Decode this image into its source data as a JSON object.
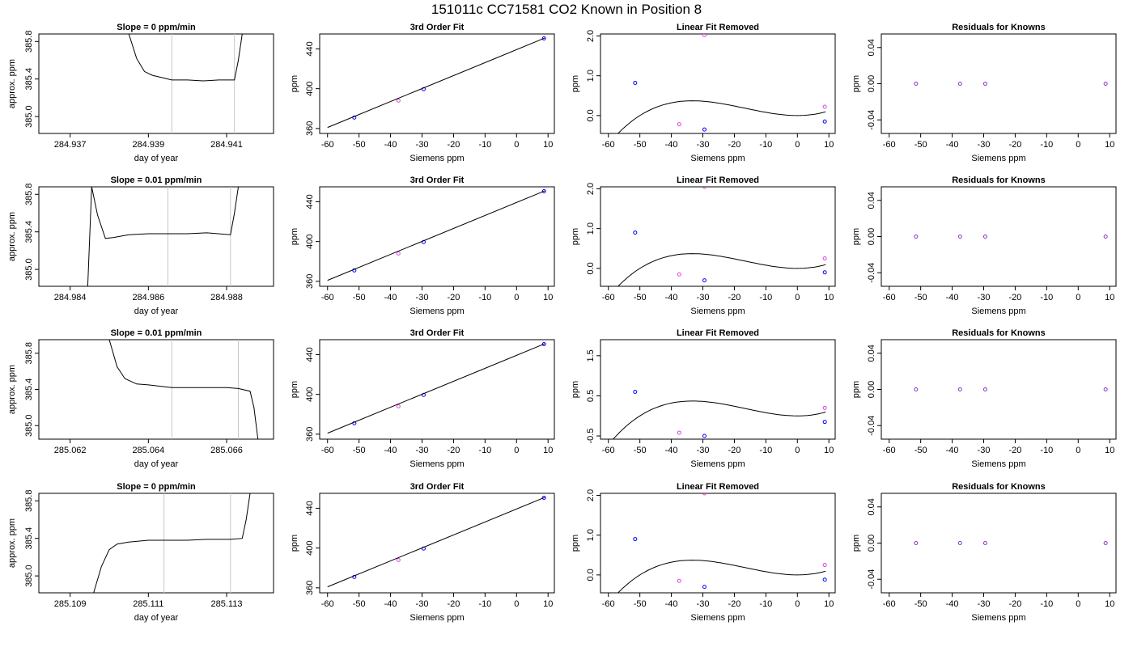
{
  "figure": {
    "title": "151011c      CC71581    CO2 Known in Position  8"
  },
  "chart_data": [
    {
      "type": "line",
      "title": "Slope =  0  ppm/min",
      "xlabel": "day of year",
      "ylabel": "approx. ppm",
      "xlim": [
        284.9362,
        284.9422
      ],
      "ylim": [
        384.82,
        385.88
      ],
      "xticks": [
        284.937,
        284.939,
        284.941
      ],
      "xtick_labels": [
        "284.937",
        "284.939",
        "284.941"
      ],
      "yticks": [
        385.0,
        385.4,
        385.8
      ],
      "ytick_labels": [
        "385.0",
        "385.4",
        "385.8"
      ],
      "vlines": [
        284.9396,
        284.9412
      ],
      "line_color": "#000000",
      "vline_color": "#c8c8c8",
      "series": [
        {
          "x": [
            284.9385,
            284.9387,
            284.9389,
            284.9391,
            284.9393,
            284.9396,
            284.94,
            284.9404,
            284.9408,
            284.9412,
            284.9413,
            284.9414
          ],
          "y": [
            385.88,
            385.62,
            385.48,
            385.44,
            385.42,
            385.39,
            385.39,
            385.38,
            385.39,
            385.39,
            385.6,
            385.88
          ]
        }
      ]
    },
    {
      "type": "scatter",
      "title": "3rd Order Fit",
      "xlabel": "Siemens ppm",
      "ylabel": "ppm",
      "xlim": [
        -62.5,
        12
      ],
      "ylim": [
        355,
        455
      ],
      "xticks": [
        -60,
        -50,
        -40,
        -30,
        -20,
        -10,
        0,
        10
      ],
      "xtick_labels": [
        "-60",
        "-50",
        "-40",
        "-30",
        "-20",
        "-10",
        "0",
        "10"
      ],
      "yticks": [
        360,
        400,
        440
      ],
      "ytick_labels": [
        "360",
        "400",
        "440"
      ],
      "series": [
        {
          "name": "knowns",
          "color": "#0000ff",
          "x": [
            -51.5,
            -29.5,
            8.7
          ],
          "y": [
            371.0,
            399.5,
            450.5
          ]
        },
        {
          "name": "unknown",
          "color": "#dd44dd",
          "x": [
            -37.5
          ],
          "y": [
            388.0
          ]
        },
        {
          "name": "fit",
          "color": "#000000",
          "x": [
            -60,
            9
          ],
          "y": [
            361.0,
            451.0
          ]
        }
      ]
    },
    {
      "type": "scatter",
      "title": "Linear Fit Removed",
      "xlabel": "Siemens ppm",
      "ylabel": "ppm",
      "xlim": [
        -62.5,
        12
      ],
      "ylim": [
        -0.45,
        2.05
      ],
      "xticks": [
        -60,
        -50,
        -40,
        -30,
        -20,
        -10,
        0,
        10
      ],
      "xtick_labels": [
        "-60",
        "-50",
        "-40",
        "-30",
        "-20",
        "-10",
        "0",
        "10"
      ],
      "yticks": [
        0.0,
        1.0,
        2.0
      ],
      "ytick_labels": [
        "0.0",
        "1.0",
        "2.0"
      ],
      "curve": {
        "x0": -60,
        "x1": 9,
        "a": 2e-05,
        "b": 0.001,
        "c": 0
      },
      "series": [
        {
          "name": "knowns",
          "color": "#0000ff",
          "x": [
            -51.5,
            -29.5,
            8.7
          ],
          "y": [
            0.82,
            -0.35,
            -0.15
          ]
        },
        {
          "name": "unknown",
          "color": "#dd44dd",
          "x": [
            -37.5,
            -29.5,
            8.7
          ],
          "y": [
            -0.22,
            2.02,
            0.22
          ]
        }
      ]
    },
    {
      "type": "scatter",
      "title": "Residuals for Knowns",
      "xlabel": "Siemens ppm",
      "ylabel": "ppm",
      "xlim": [
        -62.5,
        12
      ],
      "ylim": [
        -0.055,
        0.055
      ],
      "xticks": [
        -60,
        -50,
        -40,
        -30,
        -20,
        -10,
        0,
        10
      ],
      "xtick_labels": [
        "-60",
        "-50",
        "-40",
        "-30",
        "-20",
        "-10",
        "0",
        "10"
      ],
      "yticks": [
        -0.04,
        0.0,
        0.04
      ],
      "ytick_labels": [
        "-0.04",
        "0.00",
        "0.04"
      ],
      "series": [
        {
          "name": "residuals",
          "color": "#8833cc",
          "x": [
            -51.5,
            -37.5,
            -29.5,
            8.7
          ],
          "y": [
            0,
            0,
            0,
            0
          ]
        }
      ]
    },
    {
      "type": "line",
      "title": "Slope =  0.01  ppm/min",
      "xlabel": "day of year",
      "ylabel": "approx. ppm",
      "xlim": [
        284.9832,
        284.9892
      ],
      "ylim": [
        384.82,
        385.88
      ],
      "xticks": [
        284.984,
        284.986,
        284.988
      ],
      "xtick_labels": [
        "284.984",
        "284.986",
        "284.988"
      ],
      "yticks": [
        385.0,
        385.4,
        385.8
      ],
      "ytick_labels": [
        "385.0",
        "385.4",
        "385.8"
      ],
      "vlines": [
        284.9865,
        284.9881
      ],
      "line_color": "#000000",
      "vline_color": "#c8c8c8",
      "series": [
        {
          "x": [
            284.98445,
            284.98455,
            284.9847,
            284.9849,
            284.9851,
            284.9855,
            284.986,
            284.9865,
            284.987,
            284.9875,
            284.9881,
            284.9882,
            284.9883
          ],
          "y": [
            384.82,
            385.88,
            385.58,
            385.33,
            385.34,
            385.37,
            385.38,
            385.38,
            385.38,
            385.39,
            385.37,
            385.6,
            385.88
          ]
        }
      ]
    },
    {
      "type": "scatter",
      "title": "3rd Order Fit",
      "xlabel": "Siemens ppm",
      "ylabel": "ppm",
      "xlim": [
        -62.5,
        12
      ],
      "ylim": [
        355,
        455
      ],
      "xticks": [
        -60,
        -50,
        -40,
        -30,
        -20,
        -10,
        0,
        10
      ],
      "xtick_labels": [
        "-60",
        "-50",
        "-40",
        "-30",
        "-20",
        "-10",
        "0",
        "10"
      ],
      "yticks": [
        360,
        400,
        440
      ],
      "ytick_labels": [
        "360",
        "400",
        "440"
      ],
      "series": [
        {
          "name": "knowns",
          "color": "#0000ff",
          "x": [
            -51.5,
            -29.5,
            8.7
          ],
          "y": [
            371.0,
            399.5,
            450.5
          ]
        },
        {
          "name": "unknown",
          "color": "#dd44dd",
          "x": [
            -37.5
          ],
          "y": [
            388.0
          ]
        },
        {
          "name": "fit",
          "color": "#000000",
          "x": [
            -60,
            9
          ],
          "y": [
            361.0,
            451.0
          ]
        }
      ]
    },
    {
      "type": "scatter",
      "title": "Linear Fit Removed",
      "xlabel": "Siemens ppm",
      "ylabel": "ppm",
      "xlim": [
        -62.5,
        12
      ],
      "ylim": [
        -0.45,
        2.05
      ],
      "xticks": [
        -60,
        -50,
        -40,
        -30,
        -20,
        -10,
        0,
        10
      ],
      "xtick_labels": [
        "-60",
        "-50",
        "-40",
        "-30",
        "-20",
        "-10",
        "0",
        "10"
      ],
      "yticks": [
        0.0,
        1.0,
        2.0
      ],
      "ytick_labels": [
        "0.0",
        "1.0",
        "2.0"
      ],
      "curve": {
        "x0": -60,
        "x1": 9,
        "a": 2e-05,
        "b": 0.001,
        "c": 0
      },
      "series": [
        {
          "name": "knowns",
          "color": "#0000ff",
          "x": [
            -51.5,
            -29.5,
            8.7
          ],
          "y": [
            0.9,
            -0.3,
            -0.1
          ]
        },
        {
          "name": "unknown",
          "color": "#dd44dd",
          "x": [
            -37.5,
            -29.5,
            8.7
          ],
          "y": [
            -0.15,
            2.05,
            0.25
          ]
        }
      ]
    },
    {
      "type": "scatter",
      "title": "Residuals for Knowns",
      "xlabel": "Siemens ppm",
      "ylabel": "ppm",
      "xlim": [
        -62.5,
        12
      ],
      "ylim": [
        -0.055,
        0.055
      ],
      "xticks": [
        -60,
        -50,
        -40,
        -30,
        -20,
        -10,
        0,
        10
      ],
      "xtick_labels": [
        "-60",
        "-50",
        "-40",
        "-30",
        "-20",
        "-10",
        "0",
        "10"
      ],
      "yticks": [
        -0.04,
        0.0,
        0.04
      ],
      "ytick_labels": [
        "-0.04",
        "0.00",
        "0.04"
      ],
      "series": [
        {
          "name": "residuals",
          "color": "#8833cc",
          "x": [
            -51.5,
            -37.5,
            -29.5,
            8.7
          ],
          "y": [
            0,
            0,
            0,
            0
          ]
        }
      ]
    },
    {
      "type": "line",
      "title": "Slope =  0.01  ppm/min",
      "xlabel": "day of year",
      "ylabel": "approx. ppm",
      "xlim": [
        285.0612,
        285.0672
      ],
      "ylim": [
        384.85,
        385.95
      ],
      "xticks": [
        285.062,
        285.064,
        285.066
      ],
      "xtick_labels": [
        "285.062",
        "285.064",
        "285.066"
      ],
      "yticks": [
        385.0,
        385.4,
        385.8
      ],
      "ytick_labels": [
        "385.0",
        "385.4",
        "385.8"
      ],
      "vlines": [
        285.0646,
        285.0663
      ],
      "line_color": "#000000",
      "vline_color": "#c8c8c8",
      "series": [
        {
          "x": [
            285.063,
            285.0632,
            285.0634,
            285.0637,
            285.064,
            285.0646,
            285.065,
            285.0655,
            285.066,
            285.0663,
            285.0666,
            285.0667,
            285.0668
          ],
          "y": [
            385.95,
            385.65,
            385.52,
            385.46,
            385.45,
            385.42,
            385.42,
            385.42,
            385.42,
            385.41,
            385.38,
            385.2,
            384.85
          ]
        }
      ]
    },
    {
      "type": "scatter",
      "title": "3rd Order Fit",
      "xlabel": "Siemens ppm",
      "ylabel": "ppm",
      "xlim": [
        -62.5,
        12
      ],
      "ylim": [
        355,
        455
      ],
      "xticks": [
        -60,
        -50,
        -40,
        -30,
        -20,
        -10,
        0,
        10
      ],
      "xtick_labels": [
        "-60",
        "-50",
        "-40",
        "-30",
        "-20",
        "-10",
        "0",
        "10"
      ],
      "yticks": [
        360,
        400,
        440
      ],
      "ytick_labels": [
        "360",
        "400",
        "440"
      ],
      "series": [
        {
          "name": "knowns",
          "color": "#0000ff",
          "x": [
            -51.5,
            -29.5,
            8.7
          ],
          "y": [
            371.0,
            399.5,
            450.5
          ]
        },
        {
          "name": "unknown",
          "color": "#dd44dd",
          "x": [
            -37.5
          ],
          "y": [
            388.0
          ]
        },
        {
          "name": "fit",
          "color": "#000000",
          "x": [
            -60,
            9
          ],
          "y": [
            361.0,
            451.0
          ]
        }
      ]
    },
    {
      "type": "scatter",
      "title": "Linear Fit Removed",
      "xlabel": "Siemens ppm",
      "ylabel": "ppm",
      "xlim": [
        -62.5,
        12
      ],
      "ylim": [
        -0.58,
        1.9
      ],
      "xticks": [
        -60,
        -50,
        -40,
        -30,
        -20,
        -10,
        0,
        10
      ],
      "xtick_labels": [
        "-60",
        "-50",
        "-40",
        "-30",
        "-20",
        "-10",
        "0",
        "10"
      ],
      "yticks": [
        -0.5,
        0.5,
        1.5
      ],
      "ytick_labels": [
        "-0.5",
        "0.5",
        "1.5"
      ],
      "curve": {
        "x0": -60,
        "x1": 9,
        "a": 2e-05,
        "b": 0.001,
        "c": 0
      },
      "series": [
        {
          "name": "knowns",
          "color": "#0000ff",
          "x": [
            -51.5,
            -29.5,
            8.7
          ],
          "y": [
            0.6,
            -0.5,
            -0.15
          ]
        },
        {
          "name": "unknown",
          "color": "#dd44dd",
          "x": [
            -37.5,
            8.7
          ],
          "y": [
            -0.42,
            0.2
          ]
        }
      ]
    },
    {
      "type": "scatter",
      "title": "Residuals for Knowns",
      "xlabel": "Siemens ppm",
      "ylabel": "ppm",
      "xlim": [
        -62.5,
        12
      ],
      "ylim": [
        -0.055,
        0.055
      ],
      "xticks": [
        -60,
        -50,
        -40,
        -30,
        -20,
        -10,
        0,
        10
      ],
      "xtick_labels": [
        "-60",
        "-50",
        "-40",
        "-30",
        "-20",
        "-10",
        "0",
        "10"
      ],
      "yticks": [
        -0.04,
        0.0,
        0.04
      ],
      "ytick_labels": [
        "-0.04",
        "0.00",
        "0.04"
      ],
      "series": [
        {
          "name": "residuals",
          "color": "#8833cc",
          "x": [
            -51.5,
            -37.5,
            -29.5,
            8.7
          ],
          "y": [
            0,
            0,
            0,
            0
          ]
        }
      ]
    },
    {
      "type": "line",
      "title": "Slope =  0  ppm/min",
      "xlabel": "day of year",
      "ylabel": "approx. ppm",
      "xlim": [
        285.1082,
        285.1142
      ],
      "ylim": [
        384.82,
        385.88
      ],
      "xticks": [
        285.109,
        285.111,
        285.113
      ],
      "xtick_labels": [
        "285.109",
        "285.111",
        "285.113"
      ],
      "yticks": [
        385.0,
        385.4,
        385.8
      ],
      "ytick_labels": [
        "385.0",
        "385.4",
        "385.8"
      ],
      "vlines": [
        285.1114,
        285.1131
      ],
      "line_color": "#000000",
      "vline_color": "#c8c8c8",
      "series": [
        {
          "x": [
            285.1096,
            285.1098,
            285.11,
            285.1102,
            285.1105,
            285.111,
            285.1114,
            285.112,
            285.1125,
            285.1131,
            285.1134,
            285.1135,
            285.1136
          ],
          "y": [
            384.82,
            385.1,
            385.28,
            385.34,
            385.36,
            385.38,
            385.38,
            385.38,
            385.39,
            385.39,
            385.4,
            385.6,
            385.88
          ]
        }
      ]
    },
    {
      "type": "scatter",
      "title": "3rd Order Fit",
      "xlabel": "Siemens ppm",
      "ylabel": "ppm",
      "xlim": [
        -62.5,
        12
      ],
      "ylim": [
        355,
        455
      ],
      "xticks": [
        -60,
        -50,
        -40,
        -30,
        -20,
        -10,
        0,
        10
      ],
      "xtick_labels": [
        "-60",
        "-50",
        "-40",
        "-30",
        "-20",
        "-10",
        "0",
        "10"
      ],
      "yticks": [
        360,
        400,
        440
      ],
      "ytick_labels": [
        "360",
        "400",
        "440"
      ],
      "series": [
        {
          "name": "knowns",
          "color": "#0000ff",
          "x": [
            -51.5,
            -29.5,
            8.7
          ],
          "y": [
            371.0,
            399.5,
            450.5
          ]
        },
        {
          "name": "unknown",
          "color": "#dd44dd",
          "x": [
            -37.5
          ],
          "y": [
            388.0
          ]
        },
        {
          "name": "fit",
          "color": "#000000",
          "x": [
            -60,
            9
          ],
          "y": [
            361.0,
            451.0
          ]
        }
      ]
    },
    {
      "type": "scatter",
      "title": "Linear Fit Removed",
      "xlabel": "Siemens ppm",
      "ylabel": "ppm",
      "xlim": [
        -62.5,
        12
      ],
      "ylim": [
        -0.45,
        2.05
      ],
      "xticks": [
        -60,
        -50,
        -40,
        -30,
        -20,
        -10,
        0,
        10
      ],
      "xtick_labels": [
        "-60",
        "-50",
        "-40",
        "-30",
        "-20",
        "-10",
        "0",
        "10"
      ],
      "yticks": [
        0.0,
        1.0,
        2.0
      ],
      "ytick_labels": [
        "0.0",
        "1.0",
        "2.0"
      ],
      "curve": {
        "x0": -60,
        "x1": 9,
        "a": 2e-05,
        "b": 0.001,
        "c": 0
      },
      "series": [
        {
          "name": "knowns",
          "color": "#0000ff",
          "x": [
            -51.5,
            -29.5,
            8.7
          ],
          "y": [
            0.9,
            -0.3,
            -0.12
          ]
        },
        {
          "name": "unknown",
          "color": "#dd44dd",
          "x": [
            -37.5,
            -29.5,
            8.7
          ],
          "y": [
            -0.15,
            2.05,
            0.25
          ]
        }
      ]
    },
    {
      "type": "scatter",
      "title": "Residuals for Knowns",
      "xlabel": "Siemens ppm",
      "ylabel": "ppm",
      "xlim": [
        -62.5,
        12
      ],
      "ylim": [
        -0.055,
        0.055
      ],
      "xticks": [
        -60,
        -50,
        -40,
        -30,
        -20,
        -10,
        0,
        10
      ],
      "xtick_labels": [
        "-60",
        "-50",
        "-40",
        "-30",
        "-20",
        "-10",
        "0",
        "10"
      ],
      "yticks": [
        -0.04,
        0.0,
        0.04
      ],
      "ytick_labels": [
        "-0.04",
        "0.00",
        "0.04"
      ],
      "series": [
        {
          "name": "residuals",
          "color": "#8833cc",
          "x": [
            -51.5,
            -37.5,
            -29.5,
            8.7
          ],
          "y": [
            0,
            0,
            0,
            0
          ]
        }
      ]
    }
  ]
}
